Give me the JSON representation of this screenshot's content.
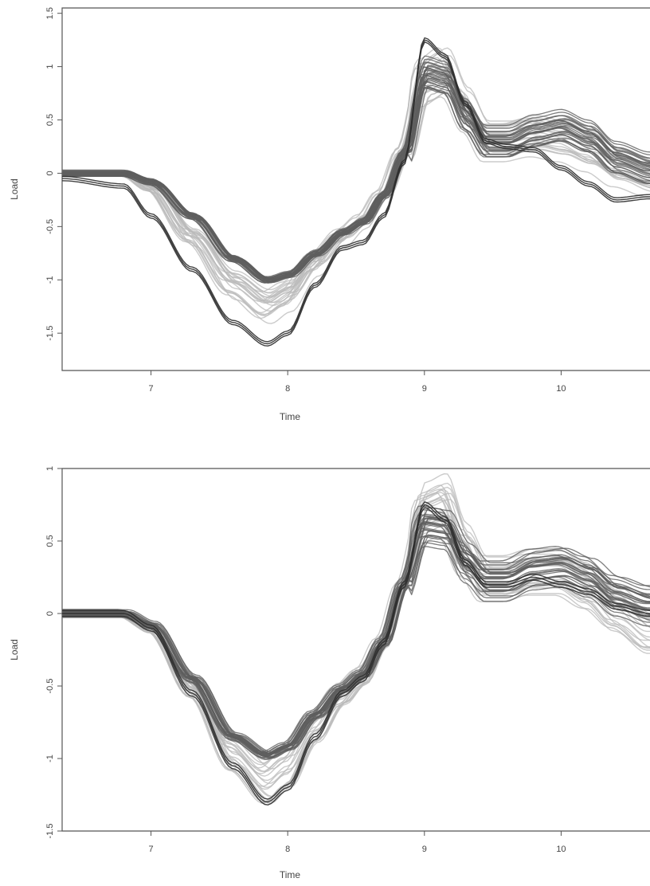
{
  "chart_data": [
    {
      "type": "line",
      "title": "",
      "xlabel": "Time",
      "ylabel": "Load",
      "xlim": [
        6.35,
        10.65
      ],
      "ylim": [
        -1.85,
        1.55
      ],
      "xticks": [
        7,
        8,
        9,
        10
      ],
      "yticks": [
        -1.5,
        -1,
        -0.5,
        0,
        0.5,
        1,
        1.5
      ],
      "xtick_labels": [
        "7",
        "8",
        "9",
        "10"
      ],
      "ytick_labels": [
        "-1.5",
        "-1",
        "-0.5",
        "0",
        "0.5",
        "1",
        "1.5"
      ],
      "grid": false,
      "colors": {
        "dark": "#2e2e2e",
        "mid": "#5e5e5e",
        "light": "#b9b9b9"
      },
      "highlight_curves": [
        {
          "role": "bottom-envelope",
          "color": "dark",
          "x": [
            6.35,
            6.8,
            7.0,
            7.3,
            7.6,
            7.85,
            8.0,
            8.2,
            8.4,
            8.55,
            8.7,
            8.85,
            9.0,
            9.15,
            9.3,
            9.45,
            9.6,
            9.8,
            10.0,
            10.2,
            10.4,
            10.65
          ],
          "y": [
            -0.05,
            -0.12,
            -0.4,
            -0.9,
            -1.4,
            -1.6,
            -1.5,
            -1.05,
            -0.7,
            -0.65,
            -0.4,
            0.1,
            1.25,
            1.1,
            0.65,
            0.3,
            0.25,
            0.22,
            0.05,
            -0.1,
            -0.25,
            -0.22
          ]
        },
        {
          "role": "main-band",
          "color": "mid",
          "x": [
            6.35,
            6.8,
            7.0,
            7.3,
            7.6,
            7.85,
            8.0,
            8.2,
            8.4,
            8.55,
            8.7,
            8.85,
            9.0,
            9.15,
            9.3,
            9.45,
            9.6,
            9.8,
            10.0,
            10.2,
            10.4,
            10.65
          ],
          "y": [
            0.0,
            0.0,
            -0.08,
            -0.4,
            -0.8,
            -1.0,
            -0.95,
            -0.75,
            -0.55,
            -0.45,
            -0.2,
            0.2,
            0.95,
            0.9,
            0.55,
            0.3,
            0.3,
            0.4,
            0.45,
            0.35,
            0.15,
            0.05
          ]
        },
        {
          "role": "light-band",
          "color": "light",
          "x": [
            6.35,
            6.8,
            7.0,
            7.3,
            7.6,
            7.85,
            8.0,
            8.2,
            8.4,
            8.55,
            8.7,
            8.85,
            9.0,
            9.15,
            9.3,
            9.45,
            9.6,
            9.8,
            10.0,
            10.2,
            10.4,
            10.65
          ],
          "y": [
            0.0,
            0.0,
            -0.15,
            -0.6,
            -1.05,
            -1.25,
            -1.15,
            -0.85,
            -0.6,
            -0.45,
            -0.2,
            0.2,
            0.85,
            0.95,
            0.6,
            0.3,
            0.3,
            0.35,
            0.3,
            0.2,
            0.05,
            -0.05
          ]
        }
      ]
    },
    {
      "type": "line",
      "title": "",
      "xlabel": "Time",
      "ylabel": "Load",
      "xlim": [
        6.35,
        10.65
      ],
      "ylim": [
        -1.5,
        1.0
      ],
      "xticks": [
        7,
        8,
        9,
        10
      ],
      "yticks": [
        -1.5,
        -1,
        -0.5,
        0,
        0.5,
        1
      ],
      "xtick_labels": [
        "7",
        "8",
        "9",
        "10"
      ],
      "ytick_labels": [
        "-1.5",
        "-1",
        "-0.5",
        "0",
        "0.5",
        "1"
      ],
      "grid": false,
      "colors": {
        "dark": "#2e2e2e",
        "mid": "#5e5e5e",
        "light": "#b9b9b9"
      },
      "highlight_curves": [
        {
          "role": "bottom-envelope",
          "color": "dark",
          "x": [
            6.35,
            6.8,
            7.0,
            7.3,
            7.6,
            7.85,
            8.0,
            8.2,
            8.4,
            8.55,
            8.7,
            8.85,
            9.0,
            9.15,
            9.3,
            9.45,
            9.6,
            9.8,
            10.0,
            10.2,
            10.4,
            10.65
          ],
          "y": [
            0.0,
            0.0,
            -0.1,
            -0.55,
            -1.05,
            -1.3,
            -1.2,
            -0.85,
            -0.55,
            -0.45,
            -0.2,
            0.2,
            0.75,
            0.65,
            0.35,
            0.2,
            0.2,
            0.25,
            0.2,
            0.15,
            0.05,
            0.0
          ]
        },
        {
          "role": "main-band",
          "color": "mid",
          "x": [
            6.35,
            6.8,
            7.0,
            7.3,
            7.6,
            7.85,
            8.0,
            8.2,
            8.4,
            8.55,
            8.7,
            8.85,
            9.0,
            9.15,
            9.3,
            9.45,
            9.6,
            9.8,
            10.0,
            10.2,
            10.4,
            10.65
          ],
          "y": [
            0.0,
            0.0,
            -0.08,
            -0.45,
            -0.85,
            -0.98,
            -0.92,
            -0.7,
            -0.52,
            -0.42,
            -0.2,
            0.2,
            0.6,
            0.58,
            0.35,
            0.22,
            0.22,
            0.3,
            0.32,
            0.25,
            0.12,
            0.05
          ]
        },
        {
          "role": "light-band",
          "color": "light",
          "x": [
            6.35,
            6.8,
            7.0,
            7.3,
            7.6,
            7.85,
            8.0,
            8.2,
            8.4,
            8.55,
            8.7,
            8.85,
            9.0,
            9.15,
            9.3,
            9.45,
            9.6,
            9.8,
            10.0,
            10.2,
            10.4,
            10.65
          ],
          "y": [
            0.0,
            0.0,
            -0.1,
            -0.5,
            -0.95,
            -1.15,
            -1.05,
            -0.78,
            -0.55,
            -0.43,
            -0.2,
            0.2,
            0.7,
            0.75,
            0.45,
            0.25,
            0.25,
            0.3,
            0.3,
            0.2,
            0.05,
            -0.1
          ]
        }
      ]
    }
  ]
}
